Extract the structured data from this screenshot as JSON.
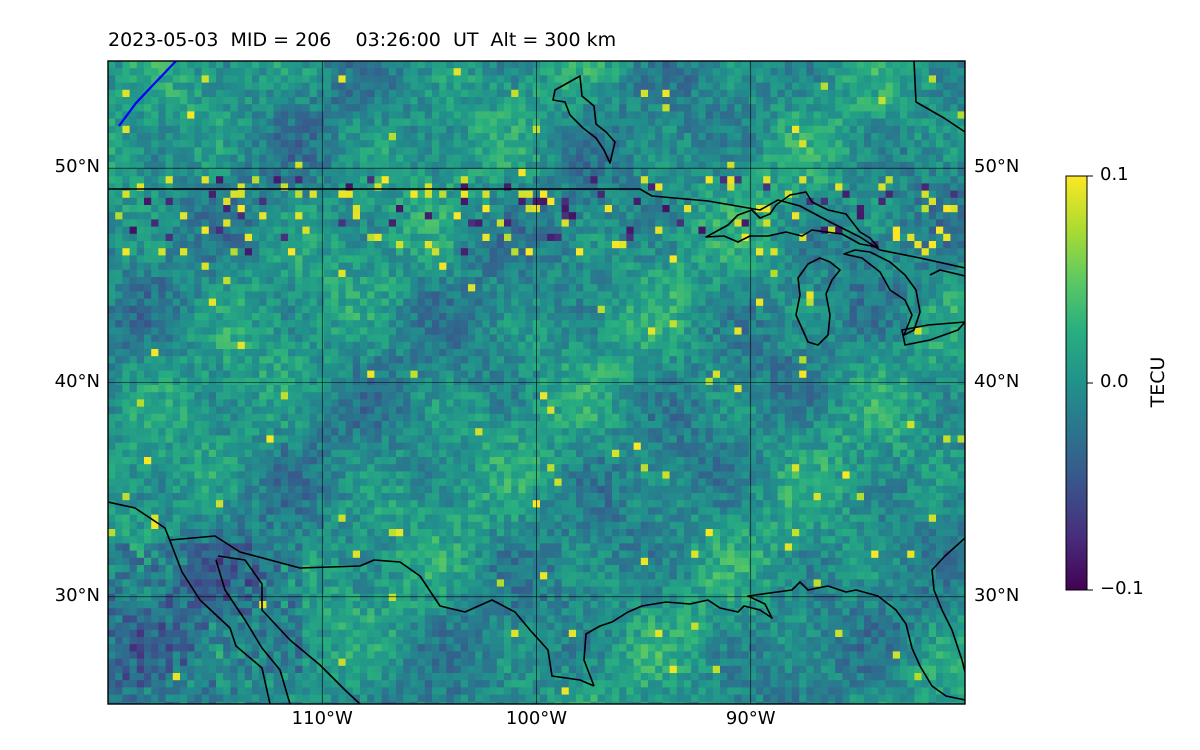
{
  "title": "2023-05-03  MID = 206    03:26:00  UT  Alt = 300 km",
  "map": {
    "lon_range": [
      -120,
      -80
    ],
    "lat_range": [
      25,
      55
    ],
    "lat_ticks": [
      {
        "value": 50,
        "label": "50°N"
      },
      {
        "value": 40,
        "label": "40°N"
      },
      {
        "value": 30,
        "label": "30°N"
      }
    ],
    "lon_ticks": [
      {
        "value": -110,
        "label": "110°W"
      },
      {
        "value": -100,
        "label": "100°W"
      },
      {
        "value": -90,
        "label": "90°W"
      }
    ],
    "gridlines": true,
    "field": "detrended TEC perturbation",
    "terminator_color": "#0000ff",
    "coast_color": "#000000"
  },
  "colorbar": {
    "label": "TECU",
    "colormap": "viridis",
    "min": -0.1,
    "max": 0.1,
    "ticks": [
      {
        "value": 0.1,
        "label": "0.1"
      },
      {
        "value": 0.0,
        "label": "0.0"
      },
      {
        "value": -0.1,
        "label": "−0.1"
      }
    ]
  }
}
